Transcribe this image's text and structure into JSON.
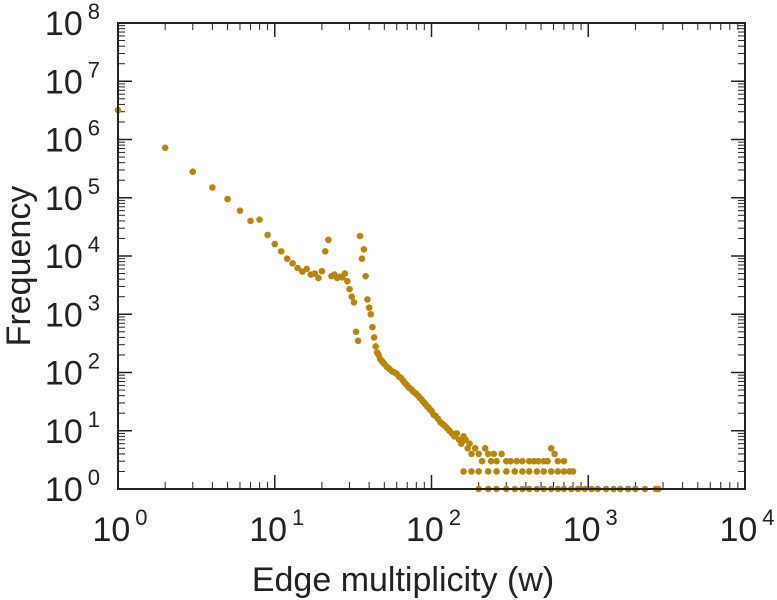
{
  "chart_data": {
    "type": "scatter",
    "title": "",
    "xlabel": "Edge multiplicity (w)",
    "ylabel": "Frequency",
    "xscale": "log",
    "yscale": "log",
    "xlim": [
      1,
      10000
    ],
    "ylim": [
      1,
      100000000
    ],
    "grid": false,
    "marker_color": "#B8860B",
    "x_tick_labels": [
      {
        "value": 1,
        "base": "10",
        "exp": "0"
      },
      {
        "value": 10,
        "base": "10",
        "exp": "1"
      },
      {
        "value": 100,
        "base": "10",
        "exp": "2"
      },
      {
        "value": 1000,
        "base": "10",
        "exp": "3"
      },
      {
        "value": 10000,
        "base": "10",
        "exp": "4"
      }
    ],
    "y_tick_labels": [
      {
        "value": 1,
        "base": "10",
        "exp": "0"
      },
      {
        "value": 10,
        "base": "10",
        "exp": "1"
      },
      {
        "value": 100,
        "base": "10",
        "exp": "2"
      },
      {
        "value": 1000,
        "base": "10",
        "exp": "3"
      },
      {
        "value": 10000,
        "base": "10",
        "exp": "4"
      },
      {
        "value": 100000,
        "base": "10",
        "exp": "5"
      },
      {
        "value": 1000000,
        "base": "10",
        "exp": "6"
      },
      {
        "value": 10000000,
        "base": "10",
        "exp": "7"
      },
      {
        "value": 100000000,
        "base": "10",
        "exp": "8"
      }
    ],
    "series": [
      {
        "name": "edge multiplicity distribution",
        "points": [
          [
            1,
            3200000
          ],
          [
            2,
            720000
          ],
          [
            3,
            280000
          ],
          [
            4,
            150000
          ],
          [
            5,
            95000
          ],
          [
            6,
            60000
          ],
          [
            7,
            40000
          ],
          [
            8,
            42000
          ],
          [
            9,
            23000
          ],
          [
            10,
            16000
          ],
          [
            11,
            12000
          ],
          [
            12,
            9000
          ],
          [
            13,
            7500
          ],
          [
            14,
            6200
          ],
          [
            15,
            5400
          ],
          [
            16,
            6000
          ],
          [
            17,
            4800
          ],
          [
            18,
            5000
          ],
          [
            19,
            4200
          ],
          [
            20,
            5500
          ],
          [
            21,
            12000
          ],
          [
            22,
            19000
          ],
          [
            23,
            4500
          ],
          [
            24,
            4800
          ],
          [
            25,
            4200
          ],
          [
            26,
            4400
          ],
          [
            27,
            4300
          ],
          [
            28,
            5000
          ],
          [
            29,
            3700
          ],
          [
            30,
            2700
          ],
          [
            31,
            2000
          ],
          [
            32,
            1600
          ],
          [
            33,
            500
          ],
          [
            34,
            350
          ],
          [
            35,
            22000
          ],
          [
            36,
            9000
          ],
          [
            37,
            13000
          ],
          [
            38,
            4500
          ],
          [
            39,
            1800
          ],
          [
            40,
            1300
          ],
          [
            41,
            1000
          ],
          [
            42,
            600
          ],
          [
            43,
            400
          ],
          [
            44,
            280
          ],
          [
            45,
            220
          ],
          [
            46,
            200
          ],
          [
            47,
            170
          ],
          [
            48,
            160
          ],
          [
            49,
            150
          ],
          [
            50,
            140
          ],
          [
            52,
            125
          ],
          [
            54,
            115
          ],
          [
            56,
            105
          ],
          [
            58,
            100
          ],
          [
            60,
            95
          ],
          [
            62,
            85
          ],
          [
            64,
            80
          ],
          [
            66,
            72
          ],
          [
            68,
            65
          ],
          [
            70,
            60
          ],
          [
            72,
            55
          ],
          [
            74,
            52
          ],
          [
            76,
            48
          ],
          [
            78,
            45
          ],
          [
            80,
            43
          ],
          [
            82,
            40
          ],
          [
            84,
            37
          ],
          [
            86,
            35
          ],
          [
            88,
            32
          ],
          [
            90,
            30
          ],
          [
            92,
            28
          ],
          [
            94,
            26
          ],
          [
            96,
            25
          ],
          [
            98,
            23
          ],
          [
            100,
            22
          ],
          [
            103,
            19
          ],
          [
            106,
            18
          ],
          [
            110,
            16
          ],
          [
            114,
            14
          ],
          [
            118,
            13
          ],
          [
            122,
            12
          ],
          [
            126,
            11
          ],
          [
            130,
            10
          ],
          [
            135,
            9
          ],
          [
            140,
            8
          ],
          [
            145,
            9
          ],
          [
            150,
            7
          ],
          [
            155,
            6
          ],
          [
            160,
            8
          ],
          [
            165,
            7
          ],
          [
            170,
            5
          ],
          [
            175,
            6
          ],
          [
            180,
            4
          ],
          [
            190,
            5
          ],
          [
            200,
            4
          ],
          [
            210,
            3
          ],
          [
            220,
            5
          ],
          [
            230,
            4
          ],
          [
            240,
            3
          ],
          [
            250,
            4
          ],
          [
            260,
            3
          ],
          [
            280,
            4
          ],
          [
            300,
            3
          ],
          [
            320,
            3
          ],
          [
            350,
            3
          ],
          [
            380,
            3
          ],
          [
            420,
            3
          ],
          [
            450,
            3
          ],
          [
            480,
            3
          ],
          [
            520,
            3
          ],
          [
            550,
            3
          ],
          [
            580,
            5
          ],
          [
            610,
            4
          ],
          [
            640,
            3
          ],
          [
            700,
            3
          ],
          [
            160,
            2
          ],
          [
            180,
            2
          ],
          [
            200,
            2
          ],
          [
            230,
            2
          ],
          [
            260,
            2
          ],
          [
            300,
            2
          ],
          [
            340,
            2
          ],
          [
            380,
            2
          ],
          [
            420,
            2
          ],
          [
            470,
            2
          ],
          [
            520,
            2
          ],
          [
            580,
            2
          ],
          [
            640,
            2
          ],
          [
            700,
            2
          ],
          [
            760,
            2
          ],
          [
            800,
            2
          ],
          [
            200,
            1
          ],
          [
            230,
            1
          ],
          [
            260,
            1
          ],
          [
            300,
            1
          ],
          [
            340,
            1
          ],
          [
            380,
            1
          ],
          [
            420,
            1
          ],
          [
            470,
            1
          ],
          [
            520,
            1
          ],
          [
            580,
            1
          ],
          [
            640,
            1
          ],
          [
            700,
            1
          ],
          [
            780,
            1
          ],
          [
            860,
            1
          ],
          [
            950,
            1
          ],
          [
            1050,
            1
          ],
          [
            1150,
            1
          ],
          [
            1300,
            1
          ],
          [
            1450,
            1
          ],
          [
            1600,
            1
          ],
          [
            1800,
            1
          ],
          [
            2000,
            1
          ],
          [
            2300,
            1
          ],
          [
            2700,
            1
          ],
          [
            2800,
            1
          ]
        ]
      }
    ]
  }
}
